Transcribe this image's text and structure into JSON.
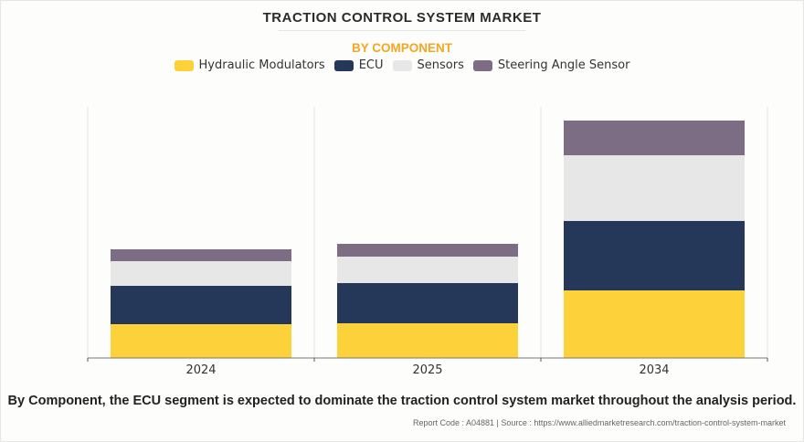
{
  "title": "TRACTION CONTROL SYSTEM MARKET",
  "subtitle": "BY COMPONENT",
  "caption": "By Component, the ECU segment is expected to dominate the traction control system market throughout the analysis period.",
  "source": "Report Code : A04881  |  Source : https://www.alliedmarketresearch.com/traction-control-system-market",
  "chart_data": {
    "type": "bar",
    "stacked": true,
    "title": "TRACTION CONTROL SYSTEM MARKET",
    "subtitle": "BY COMPONENT",
    "xlabel": "",
    "ylabel": "",
    "categories": [
      "2024",
      "2025",
      "2034"
    ],
    "ylim": [
      0,
      275
    ],
    "grid": false,
    "legend_position": "top-center",
    "series": [
      {
        "name": "Hydraulic Modulators",
        "color": "#fdd13a",
        "values": [
          37,
          38,
          74
        ]
      },
      {
        "name": "ECU",
        "color": "#263859",
        "values": [
          42,
          44,
          76
        ]
      },
      {
        "name": "Sensors",
        "color": "#e7e7e7",
        "values": [
          27,
          29,
          72
        ]
      },
      {
        "name": "Steering Angle Sensor",
        "color": "#7c6d84",
        "values": [
          13,
          14,
          38
        ]
      }
    ]
  }
}
